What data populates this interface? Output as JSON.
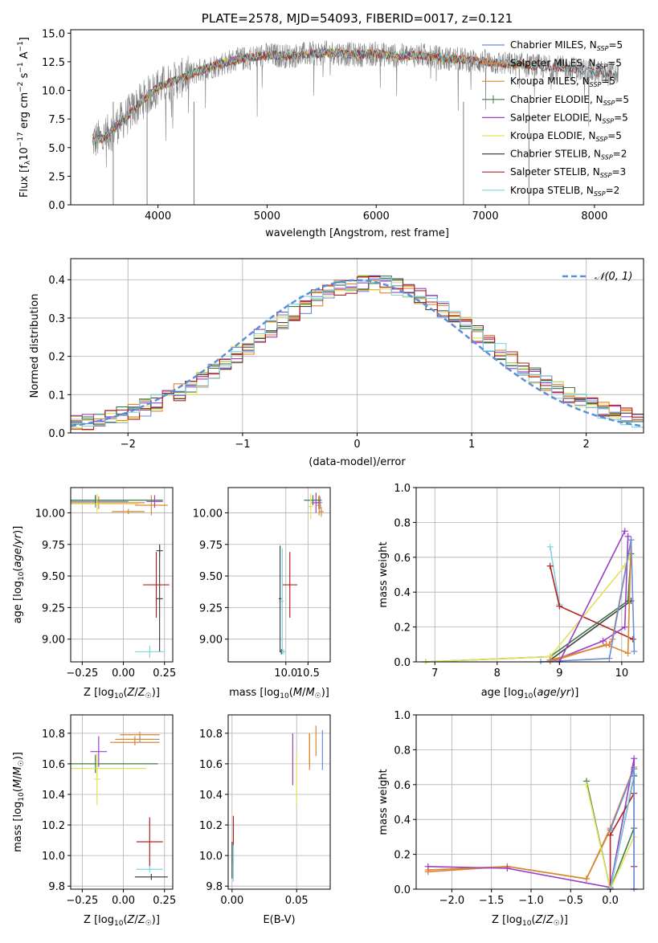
{
  "figure_title": "PLATE=2578, MJD=54093, FIBERID=0017, z=0.121",
  "colors": {
    "Chabrier MILES": "#6b8ed6",
    "Salpeter MILES": "#e0823a",
    "Kroupa MILES": "#d88a2a",
    "Chabrier ELODIE": "#3d7a4a",
    "Salpeter ELODIE": "#9b3fc9",
    "Kroupa ELODIE": "#e3e25a",
    "Chabrier STELIB": "#444444",
    "Salpeter STELIB": "#b22222",
    "Kroupa STELIB": "#7fd6e0",
    "normal_curve": "#5b8fd9",
    "spectrum": "#808080"
  },
  "chart_data": [
    {
      "id": "spectrum",
      "type": "line",
      "title": "PLATE=2578, MJD=54093, FIBERID=0017, z=0.121",
      "xlabel": "wavelength [Angstrom, rest frame]",
      "ylabel": "Flux [f_λ10^-17 erg cm^-2 s^-1 A^-1]",
      "xlim": [
        3200,
        8450
      ],
      "ylim": [
        0,
        15.3
      ],
      "xticks": [
        "4000",
        "5000",
        "6000",
        "7000",
        "8000"
      ],
      "yticks": [
        "0.0",
        "2.5",
        "5.0",
        "7.5",
        "10.0",
        "12.5",
        "15.0"
      ],
      "legend": [
        "Chabrier MILES, N_SSP=5",
        "Salpeter MILES, N_SSP=5",
        "Kroupa MILES, N_SSP=5",
        "Chabrier ELODIE, N_SSP=5",
        "Salpeter ELODIE, N_SSP=5",
        "Kroupa ELODIE, N_SSP=5",
        "Chabrier STELIB, N_SSP=2",
        "Salpeter STELIB, N_SSP=3",
        "Kroupa STELIB, N_SSP=2"
      ],
      "legend_loc": "upper right",
      "continuum": {
        "x": [
          3400,
          3500,
          3600,
          3700,
          3800,
          3900,
          4000,
          4200,
          4400,
          4600,
          4800,
          5000,
          5200,
          5400,
          5600,
          5800,
          6000,
          6200,
          6400,
          6600,
          6800,
          7000,
          7200,
          7400,
          7600,
          7800,
          8000,
          8200
        ],
        "y": [
          5.6,
          5.8,
          6.8,
          7.6,
          8.6,
          9.5,
          10.3,
          11.0,
          11.8,
          12.4,
          12.8,
          13.1,
          13.0,
          13.2,
          13.3,
          13.1,
          13.2,
          13.0,
          13.1,
          12.8,
          12.7,
          12.5,
          12.3,
          12.2,
          12.0,
          11.9,
          11.6,
          11.4
        ]
      },
      "dips": [
        {
          "x": 3590,
          "y": 0.0
        },
        {
          "x": 3900,
          "y": 0.0
        },
        {
          "x": 4330,
          "y": 0.0
        },
        {
          "x": 6800,
          "y": 0.0
        },
        {
          "x": 7400,
          "y": 0.0
        }
      ],
      "models_range": [
        3400,
        7450
      ],
      "data_range": [
        3400,
        8220
      ]
    },
    {
      "id": "residuals",
      "type": "line",
      "xlabel": "(data-model)/error",
      "ylabel": "Normed distribution",
      "xlim": [
        -2.5,
        2.5
      ],
      "ylim": [
        0,
        0.455
      ],
      "xticks": [
        "−2",
        "−1",
        "0",
        "1",
        "2"
      ],
      "yticks": [
        "0.0",
        "0.1",
        "0.2",
        "0.3",
        "0.4"
      ],
      "curve_label": "𝒩(0, 1)",
      "grid": true
    },
    {
      "id": "age_vs_Z",
      "type": "scatter",
      "xlabel": "Z [log10(Z/Z☉)]",
      "ylabel": "age  [log10(age/yr)]",
      "xlim": [
        -0.32,
        0.3
      ],
      "ylim": [
        8.82,
        10.2
      ],
      "xticks": [
        "−0.25",
        "0.00",
        "0.25"
      ],
      "yticks": [
        "9.00",
        "9.25",
        "9.50",
        "9.75",
        "10.00"
      ],
      "grid": true,
      "points": [
        {
          "model": "Chabrier MILES",
          "x": -0.17,
          "y": 10.09,
          "xerr": 0.2,
          "yerr": 0.05
        },
        {
          "model": "Salpeter MILES",
          "x": -0.15,
          "y": 10.08,
          "xerr": 0.28,
          "yerr": 0.05
        },
        {
          "model": "Kroupa MILES",
          "x": 0.17,
          "y": 10.06,
          "xerr": 0.1,
          "yerr": 0.08
        },
        {
          "model": "Chabrier ELODIE",
          "x": -0.17,
          "y": 10.1,
          "xerr": 0.41,
          "yerr": 0.04
        },
        {
          "model": "Salpeter ELODIE",
          "x": 0.19,
          "y": 10.09,
          "xerr": 0.05,
          "yerr": 0.05
        },
        {
          "model": "Kroupa ELODIE",
          "x": -0.16,
          "y": 10.07,
          "xerr": 0.25,
          "yerr": 0.08
        },
        {
          "model": "Chabrier STELIB",
          "x": 0.22,
          "y": 9.32,
          "xerr": 0.02,
          "yerr": 0.42
        },
        {
          "model": "Salpeter STELIB",
          "x": 0.2,
          "y": 9.43,
          "xerr": 0.08,
          "yerr": 0.26
        },
        {
          "model": "Kroupa STELIB",
          "x": 0.16,
          "y": 8.9,
          "xerr": 0.09,
          "yerr": 0.05
        },
        {
          "model": "Chabrier STELIB",
          "x": 0.22,
          "y": 9.7,
          "xerr": 0.02,
          "yerr": 0.05
        },
        {
          "model": "Kroupa MILES",
          "x": 0.03,
          "y": 10.01,
          "xerr": 0.1,
          "yerr": 0.02
        }
      ]
    },
    {
      "id": "age_vs_mass",
      "type": "scatter",
      "xlabel": "mass [log10(M/M☉)]",
      "ylim": [
        8.82,
        10.2
      ],
      "xlim": [
        8.7,
        11.0
      ],
      "xticks": [
        "10.0",
        "10.5"
      ],
      "yticks": [
        "9.00",
        "9.25",
        "9.50",
        "9.75",
        "10.00"
      ],
      "grid": true,
      "points": [
        {
          "model": "Chabrier MILES",
          "x": 10.77,
          "y": 10.08,
          "xerr": 0.05,
          "yerr": 0.05
        },
        {
          "model": "Salpeter MILES",
          "x": 10.74,
          "y": 10.08,
          "xerr": 0.05,
          "yerr": 0.05
        },
        {
          "model": "Kroupa MILES",
          "x": 10.75,
          "y": 10.06,
          "xerr": 0.05,
          "yerr": 0.08
        },
        {
          "model": "Chabrier ELODIE",
          "x": 10.61,
          "y": 10.1,
          "xerr": 0.2,
          "yerr": 0.04
        },
        {
          "model": "Salpeter ELODIE",
          "x": 10.68,
          "y": 10.08,
          "xerr": 0.1,
          "yerr": 0.08
        },
        {
          "model": "Kroupa ELODIE",
          "x": 10.56,
          "y": 10.05,
          "xerr": 0.05,
          "yerr": 0.1
        },
        {
          "model": "Chabrier STELIB",
          "x": 9.87,
          "y": 9.32,
          "xerr": 0.03,
          "yerr": 0.42
        },
        {
          "model": "Salpeter STELIB",
          "x": 10.09,
          "y": 9.43,
          "xerr": 0.17,
          "yerr": 0.26
        },
        {
          "model": "Kroupa STELIB",
          "x": 9.92,
          "y": 9.3,
          "xerr": 0.03,
          "yerr": 0.42
        },
        {
          "model": "Chabrier STELIB",
          "x": 9.9,
          "y": 8.9,
          "xerr": 0.04,
          "yerr": 0.02
        },
        {
          "model": "Kroupa STELIB",
          "x": 9.95,
          "y": 8.9,
          "xerr": 0.05,
          "yerr": 0.02
        },
        {
          "model": "Kroupa MILES",
          "x": 10.8,
          "y": 10.01,
          "xerr": 0.05,
          "yerr": 0.04
        }
      ]
    },
    {
      "id": "weights_vs_age",
      "type": "line",
      "xlabel": "age  [log10(age/yr)]",
      "ylabel": "mass weight",
      "xlim": [
        6.7,
        10.35
      ],
      "ylim": [
        0,
        1.0
      ],
      "xticks": [
        "7",
        "8",
        "9",
        "10"
      ],
      "yticks": [
        "0.0",
        "0.2",
        "0.4",
        "0.6",
        "0.8",
        "1.0"
      ],
      "grid": true,
      "series": [
        {
          "model": "Kroupa STELIB",
          "x": [
            8.85,
            9.0
          ],
          "y": [
            0.66,
            0.33
          ]
        },
        {
          "model": "Salpeter STELIB",
          "x": [
            8.85,
            9.0,
            10.18
          ],
          "y": [
            0.55,
            0.32,
            0.13
          ]
        },
        {
          "model": "Chabrier STELIB",
          "x": [
            8.85,
            10.15
          ],
          "y": [
            0.01,
            0.35
          ]
        },
        {
          "model": "Chabrier ELODIE",
          "x": [
            6.85,
            8.85,
            10.1,
            10.15
          ],
          "y": [
            0.0,
            0.03,
            0.35,
            0.62
          ]
        },
        {
          "model": "Kroupa ELODIE",
          "x": [
            6.85,
            8.85,
            10.05,
            10.12
          ],
          "y": [
            0.0,
            0.03,
            0.55,
            0.6
          ]
        },
        {
          "model": "Salpeter ELODIE",
          "x": [
            8.85,
            9.7,
            10.05,
            10.1
          ],
          "y": [
            0.0,
            0.12,
            0.2,
            0.72
          ]
        },
        {
          "model": "Kroupa MILES",
          "x": [
            8.85,
            9.75,
            10.1,
            10.15
          ],
          "y": [
            0.0,
            0.1,
            0.05,
            0.7
          ]
        },
        {
          "model": "Salpeter MILES",
          "x": [
            8.85,
            9.8,
            9.85,
            10.15
          ],
          "y": [
            0.01,
            0.1,
            0.13,
            0.7
          ]
        },
        {
          "model": "Chabrier MILES",
          "x": [
            8.7,
            9.8,
            10.15,
            10.2
          ],
          "y": [
            0.0,
            0.02,
            0.7,
            0.06
          ]
        },
        {
          "model": "Salpeter ELODIE",
          "x": [
            9.0,
            10.05
          ],
          "y": [
            0.0,
            0.75
          ]
        }
      ]
    },
    {
      "id": "mass_vs_Z",
      "type": "scatter",
      "xlabel": "Z [log10(Z/Z☉)]",
      "ylabel": "mass [log10(M/M☉)]",
      "xlim": [
        -0.32,
        0.3
      ],
      "ylim": [
        9.78,
        10.92
      ],
      "xticks": [
        "−0.25",
        "0.00",
        "0.25"
      ],
      "yticks": [
        "9.8",
        "10.0",
        "10.2",
        "10.4",
        "10.6",
        "10.8"
      ],
      "grid": true,
      "points": [
        {
          "model": "Chabrier MILES",
          "x": 0.1,
          "y": 10.76,
          "xerr": 0.12,
          "yerr": 0.02
        },
        {
          "model": "Salpeter MILES",
          "x": 0.07,
          "y": 10.74,
          "xerr": 0.15,
          "yerr": 0.02
        },
        {
          "model": "Kroupa MILES",
          "x": 0.07,
          "y": 10.76,
          "xerr": 0.12,
          "yerr": 0.02
        },
        {
          "model": "Chabrier ELODIE",
          "x": -0.17,
          "y": 10.6,
          "xerr": 0.38,
          "yerr": 0.06
        },
        {
          "model": "Salpeter ELODIE",
          "x": -0.15,
          "y": 10.68,
          "xerr": 0.05,
          "yerr": 0.1
        },
        {
          "model": "Kroupa ELODIE",
          "x": -0.16,
          "y": 10.57,
          "xerr": 0.3,
          "yerr": 0.06
        },
        {
          "model": "Chabrier STELIB",
          "x": 0.17,
          "y": 9.86,
          "xerr": 0.1,
          "yerr": 0.02
        },
        {
          "model": "Salpeter STELIB",
          "x": 0.16,
          "y": 10.09,
          "xerr": 0.08,
          "yerr": 0.16
        },
        {
          "model": "Kroupa STELIB",
          "x": 0.16,
          "y": 9.91,
          "xerr": 0.08,
          "yerr": 0.02
        },
        {
          "model": "Kroupa ELODIE",
          "x": -0.16,
          "y": 10.5,
          "xerr": 0.02,
          "yerr": 0.17
        },
        {
          "model": "Kroupa MILES",
          "x": 0.1,
          "y": 10.79,
          "xerr": 0.12,
          "yerr": 0.02
        }
      ]
    },
    {
      "id": "mass_vs_EBV",
      "type": "scatter",
      "xlabel": "E(B-V)",
      "xlim": [
        -0.003,
        0.076
      ],
      "ylim": [
        9.78,
        10.92
      ],
      "xticks": [
        "0.00",
        "0.05"
      ],
      "yticks": [
        "9.8",
        "10.0",
        "10.2",
        "10.4",
        "10.6",
        "10.8"
      ],
      "grid": true,
      "points": [
        {
          "model": "Chabrier MILES",
          "x": 0.07,
          "y": 10.69,
          "xerr": 0.0,
          "yerr": 0.13
        },
        {
          "model": "Salpeter MILES",
          "x": 0.06,
          "y": 10.68,
          "xerr": 0.0,
          "yerr": 0.12
        },
        {
          "model": "Kroupa MILES",
          "x": 0.06,
          "y": 10.7,
          "xerr": 0.0,
          "yerr": 0.1
        },
        {
          "model": "Salpeter ELODIE",
          "x": 0.047,
          "y": 10.63,
          "xerr": 0.0,
          "yerr": 0.17
        },
        {
          "model": "Kroupa ELODIE",
          "x": 0.05,
          "y": 10.5,
          "xerr": 0.0,
          "yerr": 0.17
        },
        {
          "model": "Chabrier STELIB",
          "x": 0.0,
          "y": 9.97,
          "xerr": 0.0,
          "yerr": 0.12
        },
        {
          "model": "Salpeter STELIB",
          "x": 0.001,
          "y": 10.1,
          "xerr": 0.0,
          "yerr": 0.16
        },
        {
          "model": "Kroupa STELIB",
          "x": 0.001,
          "y": 9.95,
          "xerr": 0.0,
          "yerr": 0.12
        },
        {
          "model": "Kroupa MILES",
          "x": 0.065,
          "y": 10.75,
          "xerr": 0.0,
          "yerr": 0.1
        }
      ]
    },
    {
      "id": "weights_vs_Z",
      "type": "line",
      "xlabel": "Z [log10(Z/Z☉)]",
      "ylabel": "mass weight",
      "xlim": [
        -2.45,
        0.42
      ],
      "ylim": [
        0,
        1.0
      ],
      "xticks": [
        "−2.0",
        "−1.5",
        "−1.0",
        "−0.5",
        "0.0"
      ],
      "yticks": [
        "0.0",
        "0.2",
        "0.4",
        "0.6",
        "0.8",
        "1.0"
      ],
      "grid": true,
      "series": [
        {
          "model": "Salpeter MILES",
          "x": [
            -2.3,
            -1.3,
            -0.3,
            0.0,
            0.3
          ],
          "y": [
            0.1,
            0.13,
            0.06,
            0.35,
            0.7
          ]
        },
        {
          "model": "Kroupa MILES",
          "x": [
            -2.3,
            -1.3,
            -0.3,
            0.0,
            0.3
          ],
          "y": [
            0.11,
            0.13,
            0.06,
            0.34,
            0.69
          ]
        },
        {
          "model": "Salpeter ELODIE",
          "x": [
            -2.3,
            -1.3,
            0.0,
            0.3,
            0.3
          ],
          "y": [
            0.13,
            0.12,
            0.01,
            0.75,
            0.0
          ]
        },
        {
          "model": "Chabrier ELODIE",
          "x": [
            -0.3,
            0.0,
            0.3
          ],
          "y": [
            0.62,
            0.0,
            0.35
          ]
        },
        {
          "model": "Kroupa ELODIE",
          "x": [
            -0.3,
            0.0,
            0.3
          ],
          "y": [
            0.6,
            0.0,
            0.3
          ]
        },
        {
          "model": "Chabrier STELIB",
          "x": [
            0.0,
            0.3
          ],
          "y": [
            0.0,
            0.65
          ]
        },
        {
          "model": "Salpeter STELIB",
          "x": [
            0.0,
            0.0,
            0.3,
            0.3
          ],
          "y": [
            0.0,
            0.31,
            0.55,
            0.13
          ]
        },
        {
          "model": "Kroupa STELIB",
          "x": [
            0.0,
            0.3
          ],
          "y": [
            0.0,
            0.66
          ]
        },
        {
          "model": "Chabrier MILES",
          "x": [
            0.0,
            0.3,
            0.3
          ],
          "y": [
            0.34,
            0.69,
            0.0
          ]
        }
      ]
    }
  ]
}
